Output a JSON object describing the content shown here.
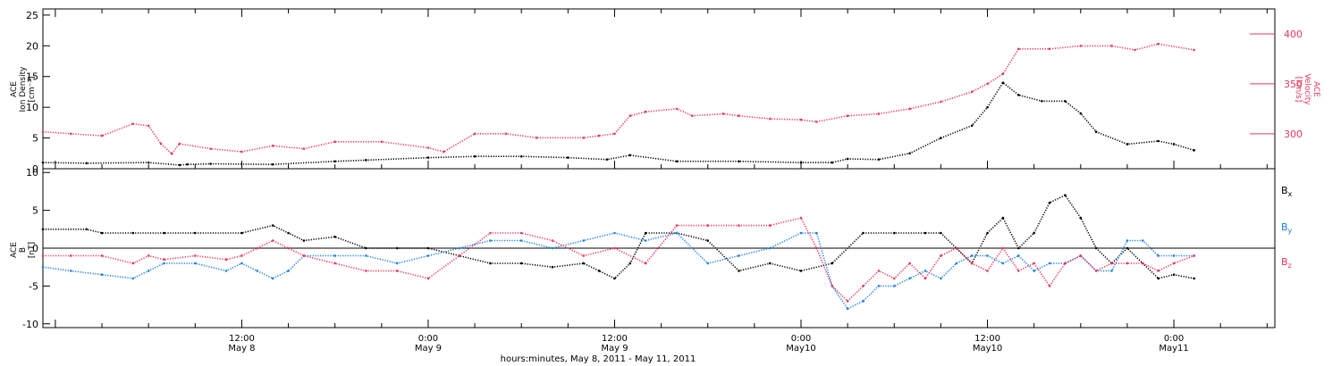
{
  "colors": {
    "black": "#000000",
    "pink": "#e8365c",
    "blue": "#1a7fe0"
  },
  "panels": {
    "top": {
      "left_axis": {
        "label_line1": "ACE",
        "label_line2": "Ion Density",
        "label_line3": "[cm⁻³]",
        "ylim": [
          0,
          26
        ],
        "ticks": [
          "0",
          "5",
          "10",
          "15",
          "20",
          "25"
        ]
      },
      "right_axis": {
        "label_line1": "ACE",
        "label_line2": "Velocity",
        "label_line3": "[km/s]",
        "ylim": [
          265,
          425
        ],
        "ticks": [
          "300",
          "350",
          "400"
        ]
      }
    },
    "bottom": {
      "left_axis": {
        "label_line1": "ACE",
        "label_line2": "B",
        "label_line3": "[nT]",
        "ylim": [
          -10.5,
          10.5
        ],
        "ticks": [
          "-10",
          "-5",
          "0",
          "5",
          "10"
        ]
      },
      "legend": [
        {
          "base": "B",
          "sub": "x",
          "color": "#000000"
        },
        {
          "base": "B",
          "sub": "y",
          "color": "#1a7fe0"
        },
        {
          "base": "B",
          "sub": "z",
          "color": "#e8365c"
        }
      ]
    }
  },
  "x_axis": {
    "ticks": [
      {
        "time": "12:00",
        "date": "May 8",
        "hour": 12
      },
      {
        "time": "0:00",
        "date": "May 9",
        "hour": 24
      },
      {
        "time": "12:00",
        "date": "May 9",
        "hour": 36
      },
      {
        "time": "0:00",
        "date": "May10",
        "hour": 48
      },
      {
        "time": "12:00",
        "date": "May10",
        "hour": 60
      },
      {
        "time": "0:00",
        "date": "May11",
        "hour": 72
      }
    ],
    "label": "hours:minutes, May  8, 2011 - May 11, 2011"
  },
  "chart_data": {
    "type": "scatter",
    "x_unit": "hours from May 8, 2011 00:00",
    "xlim": [
      -0.8,
      78.5
    ],
    "top": {
      "series": [
        {
          "quantity": "ion density",
          "color": "#000000",
          "axis": "left",
          "x": [
            -0.8,
            2,
            6,
            8,
            8.5,
            10,
            14,
            18,
            20,
            24,
            27,
            30,
            33,
            35.5,
            37,
            40,
            44,
            48,
            50,
            51,
            53,
            55,
            57,
            59,
            60,
            61,
            62,
            63.5,
            65,
            66,
            67,
            69,
            71,
            72,
            73.3
          ],
          "y": [
            1,
            0.9,
            1,
            0.6,
            0.7,
            0.8,
            0.7,
            1.2,
            1.4,
            1.8,
            2,
            2,
            1.8,
            1.5,
            2.2,
            1.2,
            1.2,
            1,
            1,
            1.6,
            1.5,
            2.5,
            5,
            7,
            10,
            14,
            12,
            11,
            11,
            9,
            6,
            4,
            4.5,
            4,
            3
          ]
        },
        {
          "quantity": "velocity",
          "color": "#e8365c",
          "axis": "right",
          "x": [
            -0.8,
            1,
            3,
            5,
            6,
            6.8,
            7.5,
            8,
            10,
            12,
            14,
            16,
            18,
            21,
            24,
            25,
            27,
            29,
            31,
            34,
            35,
            36,
            37,
            38,
            40,
            41,
            43,
            44,
            46,
            48,
            49,
            51,
            53,
            55,
            57,
            59,
            60,
            61,
            62,
            64,
            66,
            68,
            69.5,
            71,
            73.3
          ],
          "y": [
            302,
            300,
            298,
            310,
            308,
            290,
            280,
            290,
            285,
            282,
            288,
            285,
            292,
            292,
            286,
            282,
            300,
            300,
            296,
            296,
            298,
            300,
            318,
            322,
            325,
            318,
            320,
            318,
            315,
            314,
            312,
            318,
            320,
            325,
            332,
            342,
            350,
            360,
            385,
            385,
            388,
            388,
            384,
            390,
            384
          ]
        }
      ]
    },
    "bottom": {
      "series": [
        {
          "name": "Bx",
          "color": "#000000",
          "x": [
            -0.8,
            2,
            3,
            5,
            7,
            9,
            12,
            14,
            15,
            16,
            18,
            20,
            22,
            24,
            26,
            28,
            30,
            32,
            34,
            35,
            36,
            37,
            38,
            40,
            42,
            44,
            46,
            48,
            50,
            52,
            54,
            56,
            57,
            58,
            59,
            60,
            61,
            62,
            63,
            64,
            65,
            66,
            67,
            68,
            69,
            70,
            71,
            72,
            73.3
          ],
          "y": [
            2.5,
            2.5,
            2,
            2,
            2,
            2,
            2,
            3,
            2,
            1,
            1.5,
            0,
            0,
            0,
            -1,
            -2,
            -2,
            -2.5,
            -2,
            -3,
            -4,
            -2,
            2,
            2,
            1,
            -3,
            -2,
            -3,
            -2,
            2,
            2,
            2,
            2,
            0,
            -2,
            2,
            4,
            0,
            2,
            6,
            7,
            4,
            0,
            -2,
            0,
            -2,
            -4,
            -3.5,
            -4
          ]
        },
        {
          "name": "By",
          "color": "#1a7fe0",
          "x": [
            -0.8,
            1,
            3,
            5,
            6,
            7,
            9,
            11,
            12,
            13,
            14,
            15,
            16,
            18,
            20,
            22,
            24,
            26,
            28,
            30,
            32,
            34,
            36,
            38,
            40,
            42,
            44,
            46,
            48,
            49,
            50,
            51,
            52,
            53,
            54,
            55,
            56,
            57,
            58,
            59,
            60,
            61,
            62,
            63,
            64,
            65,
            66,
            67,
            68,
            69,
            70,
            71,
            72,
            73.3
          ],
          "y": [
            -2.5,
            -3,
            -3.5,
            -4,
            -3,
            -2,
            -2,
            -3,
            -2,
            -3,
            -4,
            -3,
            -1,
            -1,
            -1,
            -2,
            -1,
            0,
            1,
            1,
            0,
            1,
            2,
            1,
            2,
            -2,
            -1,
            0,
            2,
            2,
            -5,
            -8,
            -7,
            -5,
            -5,
            -4,
            -3,
            -4,
            -2,
            -1,
            -1,
            -2,
            -1,
            -3,
            -2,
            -2,
            -1,
            -3,
            -3,
            1,
            1,
            -1,
            -1,
            -1
          ]
        },
        {
          "name": "Bz",
          "color": "#e8365c",
          "x": [
            -0.8,
            1,
            3,
            5,
            6,
            7,
            9,
            11,
            12,
            13,
            14,
            15,
            16,
            18,
            20,
            22,
            24,
            26,
            28,
            30,
            32,
            34,
            36,
            38,
            40,
            42,
            44,
            46,
            48,
            49,
            50,
            51,
            52,
            53,
            54,
            55,
            56,
            57,
            58,
            59,
            60,
            61,
            62,
            63,
            64,
            65,
            66,
            67,
            68,
            69,
            70,
            71,
            72,
            73.3
          ],
          "y": [
            -1,
            -1,
            -1,
            -2,
            -1,
            -1.5,
            -1,
            -1.5,
            -1,
            0,
            1,
            0,
            -1,
            -2,
            -3,
            -3,
            -4,
            -1,
            2,
            2,
            1,
            -1,
            0,
            -2,
            3,
            3,
            3,
            3,
            4,
            0,
            -5,
            -7,
            -5,
            -3,
            -4,
            -2,
            -4,
            -1,
            0,
            -2,
            -3,
            0,
            -3,
            -2,
            -5,
            -2,
            -1,
            -3,
            -2,
            -2,
            -2,
            -3,
            -2,
            -1
          ]
        }
      ]
    }
  }
}
